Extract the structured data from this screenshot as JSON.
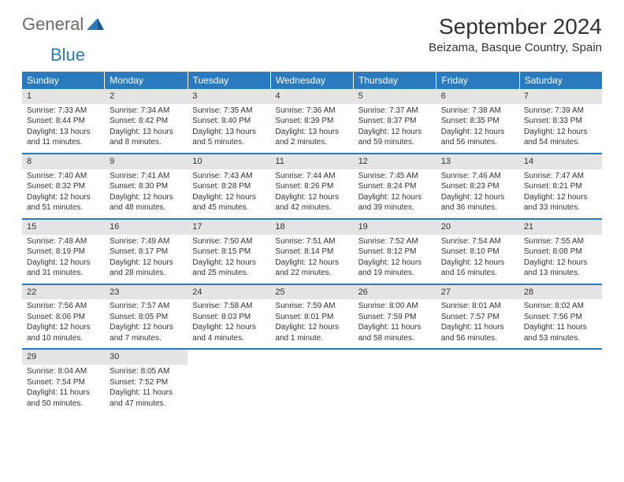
{
  "logo": {
    "general": "General",
    "blue": "Blue"
  },
  "title": "September 2024",
  "location": "Beizama, Basque Country, Spain",
  "colors": {
    "header_bg": "#2a7abf",
    "header_text": "#ffffff",
    "daynum_bg": "#e4e4e4",
    "body_text": "#333333",
    "logo_gray": "#6a6a6a",
    "logo_blue": "#2a7abf"
  },
  "day_headers": [
    "Sunday",
    "Monday",
    "Tuesday",
    "Wednesday",
    "Thursday",
    "Friday",
    "Saturday"
  ],
  "weeks": [
    [
      {
        "n": "1",
        "sr": "7:33 AM",
        "ss": "8:44 PM",
        "dl": "13 hours and 11 minutes."
      },
      {
        "n": "2",
        "sr": "7:34 AM",
        "ss": "8:42 PM",
        "dl": "13 hours and 8 minutes."
      },
      {
        "n": "3",
        "sr": "7:35 AM",
        "ss": "8:40 PM",
        "dl": "13 hours and 5 minutes."
      },
      {
        "n": "4",
        "sr": "7:36 AM",
        "ss": "8:39 PM",
        "dl": "13 hours and 2 minutes."
      },
      {
        "n": "5",
        "sr": "7:37 AM",
        "ss": "8:37 PM",
        "dl": "12 hours and 59 minutes."
      },
      {
        "n": "6",
        "sr": "7:38 AM",
        "ss": "8:35 PM",
        "dl": "12 hours and 56 minutes."
      },
      {
        "n": "7",
        "sr": "7:39 AM",
        "ss": "8:33 PM",
        "dl": "12 hours and 54 minutes."
      }
    ],
    [
      {
        "n": "8",
        "sr": "7:40 AM",
        "ss": "8:32 PM",
        "dl": "12 hours and 51 minutes."
      },
      {
        "n": "9",
        "sr": "7:41 AM",
        "ss": "8:30 PM",
        "dl": "12 hours and 48 minutes."
      },
      {
        "n": "10",
        "sr": "7:43 AM",
        "ss": "8:28 PM",
        "dl": "12 hours and 45 minutes."
      },
      {
        "n": "11",
        "sr": "7:44 AM",
        "ss": "8:26 PM",
        "dl": "12 hours and 42 minutes."
      },
      {
        "n": "12",
        "sr": "7:45 AM",
        "ss": "8:24 PM",
        "dl": "12 hours and 39 minutes."
      },
      {
        "n": "13",
        "sr": "7:46 AM",
        "ss": "8:23 PM",
        "dl": "12 hours and 36 minutes."
      },
      {
        "n": "14",
        "sr": "7:47 AM",
        "ss": "8:21 PM",
        "dl": "12 hours and 33 minutes."
      }
    ],
    [
      {
        "n": "15",
        "sr": "7:48 AM",
        "ss": "8:19 PM",
        "dl": "12 hours and 31 minutes."
      },
      {
        "n": "16",
        "sr": "7:49 AM",
        "ss": "8:17 PM",
        "dl": "12 hours and 28 minutes."
      },
      {
        "n": "17",
        "sr": "7:50 AM",
        "ss": "8:15 PM",
        "dl": "12 hours and 25 minutes."
      },
      {
        "n": "18",
        "sr": "7:51 AM",
        "ss": "8:14 PM",
        "dl": "12 hours and 22 minutes."
      },
      {
        "n": "19",
        "sr": "7:52 AM",
        "ss": "8:12 PM",
        "dl": "12 hours and 19 minutes."
      },
      {
        "n": "20",
        "sr": "7:54 AM",
        "ss": "8:10 PM",
        "dl": "12 hours and 16 minutes."
      },
      {
        "n": "21",
        "sr": "7:55 AM",
        "ss": "8:08 PM",
        "dl": "12 hours and 13 minutes."
      }
    ],
    [
      {
        "n": "22",
        "sr": "7:56 AM",
        "ss": "8:06 PM",
        "dl": "12 hours and 10 minutes."
      },
      {
        "n": "23",
        "sr": "7:57 AM",
        "ss": "8:05 PM",
        "dl": "12 hours and 7 minutes."
      },
      {
        "n": "24",
        "sr": "7:58 AM",
        "ss": "8:03 PM",
        "dl": "12 hours and 4 minutes."
      },
      {
        "n": "25",
        "sr": "7:59 AM",
        "ss": "8:01 PM",
        "dl": "12 hours and 1 minute."
      },
      {
        "n": "26",
        "sr": "8:00 AM",
        "ss": "7:59 PM",
        "dl": "11 hours and 58 minutes."
      },
      {
        "n": "27",
        "sr": "8:01 AM",
        "ss": "7:57 PM",
        "dl": "11 hours and 56 minutes."
      },
      {
        "n": "28",
        "sr": "8:02 AM",
        "ss": "7:56 PM",
        "dl": "11 hours and 53 minutes."
      }
    ],
    [
      {
        "n": "29",
        "sr": "8:04 AM",
        "ss": "7:54 PM",
        "dl": "11 hours and 50 minutes."
      },
      {
        "n": "30",
        "sr": "8:05 AM",
        "ss": "7:52 PM",
        "dl": "11 hours and 47 minutes."
      },
      null,
      null,
      null,
      null,
      null
    ]
  ],
  "labels": {
    "sunrise": "Sunrise: ",
    "sunset": "Sunset: ",
    "daylight": "Daylight: "
  }
}
